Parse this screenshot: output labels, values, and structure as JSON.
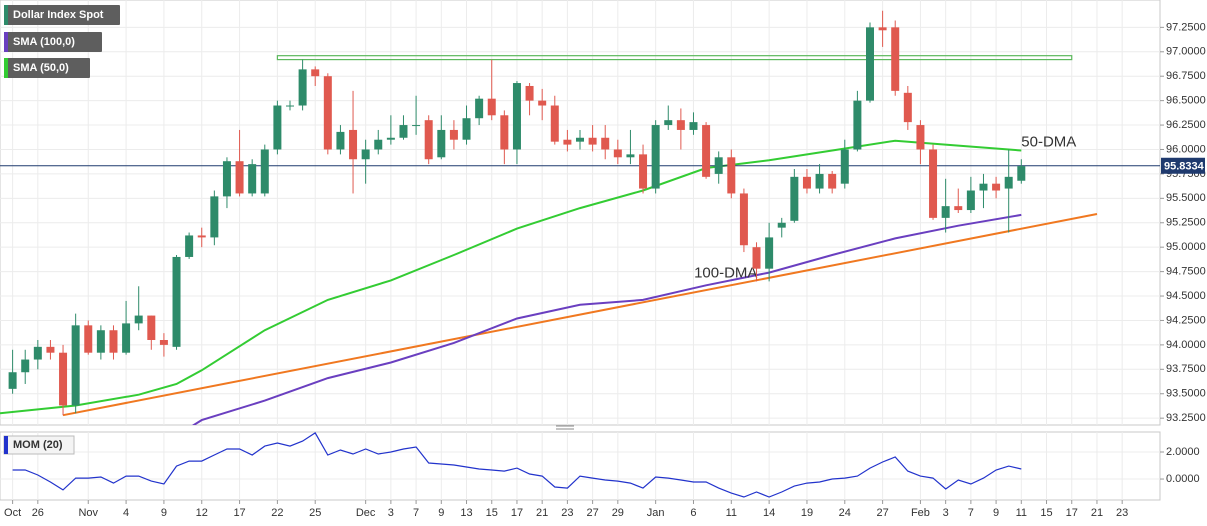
{
  "chart_data": [
    {
      "type": "candlestick",
      "xlim": [
        -1,
        91
      ],
      "xticks": [
        {
          "value": 0,
          "label": "Oct"
        },
        {
          "value": 2,
          "label": "26"
        },
        {
          "value": 6,
          "label": "Nov"
        },
        {
          "value": 9,
          "label": "4"
        },
        {
          "value": 12,
          "label": "9"
        },
        {
          "value": 15,
          "label": "12"
        },
        {
          "value": 18,
          "label": "17"
        },
        {
          "value": 21,
          "label": "22"
        },
        {
          "value": 24,
          "label": "25"
        },
        {
          "value": 28,
          "label": "Dec"
        },
        {
          "value": 30,
          "label": "3"
        },
        {
          "value": 32,
          "label": "7"
        },
        {
          "value": 34,
          "label": "9"
        },
        {
          "value": 36,
          "label": "13"
        },
        {
          "value": 38,
          "label": "15"
        },
        {
          "value": 40,
          "label": "17"
        },
        {
          "value": 42,
          "label": "21"
        },
        {
          "value": 44,
          "label": "23"
        },
        {
          "value": 46,
          "label": "27"
        },
        {
          "value": 48,
          "label": "29"
        },
        {
          "value": 51,
          "label": "Jan"
        },
        {
          "value": 54,
          "label": "6"
        },
        {
          "value": 57,
          "label": "11"
        },
        {
          "value": 60,
          "label": "14"
        },
        {
          "value": 63,
          "label": "19"
        },
        {
          "value": 66,
          "label": "24"
        },
        {
          "value": 69,
          "label": "27"
        },
        {
          "value": 72,
          "label": "Feb"
        },
        {
          "value": 74,
          "label": "3"
        },
        {
          "value": 76,
          "label": "7"
        },
        {
          "value": 78,
          "label": "9"
        },
        {
          "value": 80,
          "label": "11"
        },
        {
          "value": 82,
          "label": "15"
        },
        {
          "value": 84,
          "label": "17"
        },
        {
          "value": 86,
          "label": "21"
        },
        {
          "value": 88,
          "label": "23"
        }
      ],
      "ylim": [
        93.18,
        97.53
      ],
      "yticks": [
        {
          "value": 93.25,
          "label": "93.2500"
        },
        {
          "value": 93.5,
          "label": "93.5000"
        },
        {
          "value": 93.75,
          "label": "93.7500"
        },
        {
          "value": 94,
          "label": "94.0000"
        },
        {
          "value": 94.25,
          "label": "94.2500"
        },
        {
          "value": 94.5,
          "label": "94.5000"
        },
        {
          "value": 94.75,
          "label": "94.7500"
        },
        {
          "value": 95,
          "label": "95.0000"
        },
        {
          "value": 95.25,
          "label": "95.2500"
        },
        {
          "value": 95.5,
          "label": "95.5000"
        },
        {
          "value": 95.75,
          "label": "95.7500"
        },
        {
          "value": 96,
          "label": "96.0000"
        },
        {
          "value": 96.25,
          "label": "96.2500"
        },
        {
          "value": 96.5,
          "label": "96.5000"
        },
        {
          "value": 96.75,
          "label": "96.7500"
        },
        {
          "value": 97,
          "label": "97.0000"
        },
        {
          "value": 97.25,
          "label": "97.2500"
        }
      ],
      "grid": true,
      "series": [
        {
          "name": "Dollar Index Spot",
          "up_color": "#2e8b6a",
          "down_color": "#e0594f",
          "open": [
            93.55,
            93.72,
            93.85,
            93.98,
            93.92,
            93.38,
            94.2,
            93.92,
            94.15,
            93.92,
            94.22,
            94.3,
            94.05,
            93.98,
            94.9,
            95.12,
            95.1,
            95.52,
            95.88,
            95.55,
            95.55,
            96.0,
            96.45,
            96.45,
            96.82,
            96.75,
            96.0,
            96.2,
            95.9,
            96.0,
            96.1,
            96.12,
            96.25,
            96.3,
            95.92,
            96.2,
            96.1,
            96.32,
            96.52,
            96.35,
            96.0,
            96.65,
            96.5,
            96.45,
            96.1,
            96.08,
            96.12,
            96.12,
            96.0,
            95.92,
            95.95,
            95.6,
            96.25,
            96.3,
            96.2,
            96.25,
            95.75,
            95.92,
            95.55,
            95.0,
            94.78,
            95.2,
            95.27,
            95.72,
            95.6,
            95.75,
            95.65,
            96.0,
            96.5,
            97.25,
            97.25,
            96.58,
            96.25,
            96.0,
            95.3,
            95.42,
            95.38,
            95.58,
            95.65,
            95.6,
            95.68
          ],
          "high": [
            93.95,
            93.95,
            94.05,
            94.05,
            94.0,
            94.32,
            94.25,
            94.2,
            94.2,
            94.45,
            94.6,
            94.3,
            94.12,
            94.92,
            95.15,
            95.2,
            95.58,
            95.92,
            96.2,
            95.9,
            96.05,
            96.5,
            96.5,
            96.92,
            96.85,
            96.78,
            96.25,
            96.6,
            96.1,
            96.2,
            96.35,
            96.35,
            96.55,
            96.35,
            96.35,
            96.3,
            96.45,
            96.55,
            96.92,
            96.4,
            96.7,
            96.68,
            96.62,
            96.55,
            96.2,
            96.2,
            96.25,
            96.25,
            96.1,
            96.2,
            96.05,
            96.3,
            96.45,
            96.42,
            96.38,
            96.28,
            95.98,
            96.0,
            95.6,
            95.05,
            95.25,
            95.3,
            95.8,
            95.8,
            95.85,
            95.78,
            96.1,
            96.6,
            97.3,
            97.42,
            97.32,
            96.65,
            96.3,
            96.05,
            95.7,
            95.6,
            95.72,
            95.75,
            95.72,
            96.0,
            95.9
          ],
          "low": [
            93.5,
            93.6,
            93.75,
            93.85,
            93.28,
            93.3,
            93.9,
            93.85,
            93.85,
            93.9,
            94.15,
            93.95,
            93.88,
            93.95,
            94.88,
            95.0,
            95.02,
            95.4,
            95.52,
            95.52,
            95.52,
            95.95,
            96.4,
            96.4,
            96.65,
            95.95,
            95.95,
            95.55,
            95.65,
            95.95,
            96.05,
            96.1,
            96.15,
            95.85,
            95.9,
            96.0,
            96.05,
            96.25,
            96.3,
            95.85,
            95.85,
            96.35,
            96.3,
            96.05,
            95.98,
            96.0,
            95.98,
            95.9,
            95.85,
            95.85,
            95.55,
            95.55,
            96.2,
            96.0,
            96.15,
            95.7,
            95.65,
            95.5,
            94.95,
            94.65,
            94.65,
            95.1,
            95.25,
            95.55,
            95.55,
            95.55,
            95.6,
            95.98,
            96.48,
            97.05,
            96.55,
            96.2,
            95.85,
            95.28,
            95.15,
            95.35,
            95.35,
            95.4,
            95.5,
            95.15,
            95.65
          ],
          "close": [
            93.72,
            93.85,
            93.98,
            93.92,
            93.38,
            94.2,
            93.92,
            94.15,
            93.92,
            94.22,
            94.3,
            94.05,
            94.0,
            94.9,
            95.12,
            95.1,
            95.52,
            95.88,
            95.55,
            95.85,
            96.0,
            96.45,
            96.45,
            96.82,
            96.75,
            96.0,
            96.18,
            95.9,
            96.0,
            96.1,
            96.12,
            96.25,
            96.25,
            95.9,
            96.2,
            96.1,
            96.32,
            96.52,
            96.35,
            96.0,
            96.68,
            96.5,
            96.45,
            96.08,
            96.05,
            96.12,
            96.05,
            96.0,
            95.92,
            95.95,
            95.6,
            96.25,
            96.3,
            96.2,
            96.28,
            95.72,
            95.92,
            95.55,
            95.02,
            94.78,
            95.1,
            95.25,
            95.72,
            95.6,
            95.75,
            95.6,
            96.0,
            96.5,
            97.25,
            97.22,
            96.6,
            96.28,
            96.0,
            95.3,
            95.42,
            95.38,
            95.58,
            95.65,
            95.58,
            95.72,
            95.83
          ]
        }
      ],
      "lines": [
        {
          "name": "SMA (100,0)",
          "label": "100-DMA",
          "color": "#6a3fc0",
          "x": [
            14,
            15,
            20,
            25,
            30,
            35,
            40,
            45,
            50,
            55,
            60,
            65,
            70,
            75,
            80
          ],
          "values": [
            93.15,
            93.23,
            93.43,
            93.66,
            93.82,
            94.02,
            94.27,
            94.41,
            94.46,
            94.61,
            94.74,
            94.92,
            95.09,
            95.22,
            95.33
          ]
        },
        {
          "name": "SMA (50,0)",
          "label": "50-DMA",
          "color": "#33cc33",
          "x": [
            -1,
            5,
            10,
            13,
            15,
            20,
            25,
            30,
            35,
            40,
            45,
            50,
            55,
            60,
            65,
            70,
            75,
            80
          ],
          "values": [
            93.3,
            93.38,
            93.49,
            93.6,
            93.74,
            94.15,
            94.46,
            94.66,
            94.92,
            95.19,
            95.4,
            95.58,
            95.81,
            95.89,
            95.99,
            96.09,
            96.04,
            95.99
          ]
        }
      ],
      "trendline": {
        "color": "#f07820",
        "x": [
          4,
          86
        ],
        "values": [
          93.28,
          95.34
        ]
      },
      "zone": {
        "color": "#5cb85c",
        "x": [
          21,
          84
        ],
        "values": [
          96.92,
          96.96
        ]
      },
      "last_price": {
        "value": 95.8334,
        "color": "#1f3a6e"
      }
    },
    {
      "type": "line",
      "ylim": [
        -1.55,
        3.48
      ],
      "yticks": [
        {
          "value": 0,
          "label": "0.0000"
        },
        {
          "value": 2,
          "label": "2.0000"
        }
      ],
      "series": [
        {
          "name": "MOM (20)",
          "color": "#2233cc",
          "values": [
            0.67,
            0.67,
            0.3,
            -0.22,
            -0.8,
            0.07,
            0.07,
            0.15,
            -0.3,
            0.22,
            0.22,
            -0.15,
            -0.37,
            0.96,
            1.33,
            1.33,
            1.78,
            2.22,
            2.22,
            1.78,
            2.44,
            2.67,
            2.44,
            2.81,
            3.41,
            1.78,
            2.15,
            1.85,
            2.22,
            1.85,
            2.0,
            2.22,
            2.37,
            1.19,
            1.11,
            1.04,
            0.89,
            0.74,
            0.67,
            0.59,
            0.81,
            0.37,
            0.22,
            -0.59,
            -0.67,
            0.22,
            0.07,
            -0.07,
            -0.15,
            -0.3,
            -0.67,
            0.15,
            0.07,
            -0.07,
            -0.22,
            -0.22,
            -0.67,
            -1.04,
            -1.33,
            -0.96,
            -1.33,
            -0.96,
            -0.52,
            -0.3,
            -0.22,
            0,
            0.07,
            0.22,
            0.81,
            1.26,
            1.63,
            0.59,
            0.22,
            0.07,
            -0.74,
            -0.07,
            -0.37,
            0.07,
            0.67,
            0.96,
            0.74
          ]
        }
      ]
    }
  ]
}
